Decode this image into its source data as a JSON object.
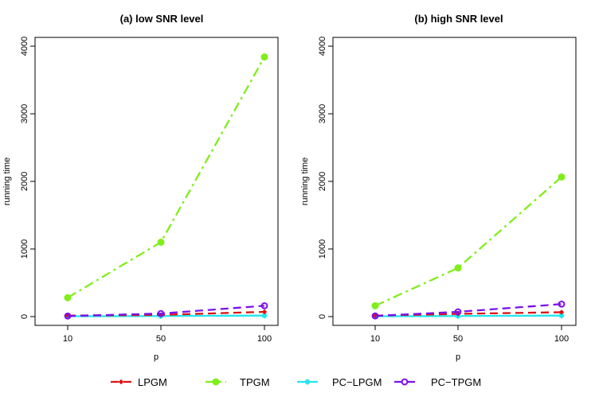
{
  "chart_data": [
    {
      "type": "line",
      "title": "(a) low SNR level",
      "xlabel": "p",
      "ylabel": "running time",
      "x": [
        10,
        50,
        100
      ],
      "x_tick_labels": [
        "10",
        "50",
        "100"
      ],
      "y_ticks": [
        0,
        1000,
        2000,
        3000,
        4000
      ],
      "y_tick_labels": [
        "0",
        "1000",
        "2000",
        "3000",
        "4000"
      ],
      "ylim": [
        -130,
        4130
      ],
      "grid": false,
      "series": [
        {
          "name": "LPGM",
          "values": [
            15,
            25,
            70
          ]
        },
        {
          "name": "TPGM",
          "values": [
            280,
            1100,
            3840
          ]
        },
        {
          "name": "PC−LPGM",
          "values": [
            5,
            8,
            15
          ]
        },
        {
          "name": "PC−TPGM",
          "values": [
            8,
            45,
            160
          ]
        }
      ]
    },
    {
      "type": "line",
      "title": "(b) high SNR level",
      "xlabel": "p",
      "ylabel": "running time",
      "x": [
        10,
        50,
        100
      ],
      "x_tick_labels": [
        "10",
        "50",
        "100"
      ],
      "y_ticks": [
        0,
        1000,
        2000,
        3000,
        4000
      ],
      "y_tick_labels": [
        "0",
        "1000",
        "2000",
        "3000",
        "4000"
      ],
      "ylim": [
        -130,
        4130
      ],
      "grid": false,
      "series": [
        {
          "name": "LPGM",
          "values": [
            15,
            40,
            65
          ]
        },
        {
          "name": "TPGM",
          "values": [
            160,
            720,
            2065
          ]
        },
        {
          "name": "PC−LPGM",
          "values": [
            5,
            8,
            15
          ]
        },
        {
          "name": "PC−TPGM",
          "values": [
            10,
            70,
            185
          ]
        }
      ]
    }
  ],
  "legend": {
    "position": "bottom",
    "items": [
      "LPGM",
      "TPGM",
      "PC−LPGM",
      "PC−TPGM"
    ]
  },
  "colors": {
    "LPGM": "#dd1111",
    "TPGM": "#80ee1a",
    "PC−LPGM": "#22e6ee",
    "PC−TPGM": "#7a10ee"
  },
  "styles": {
    "LPGM": {
      "dash": "10,6",
      "marker": "diamond"
    },
    "TPGM": {
      "dash": "12,5,3,5",
      "marker": "filled-circle"
    },
    "PC−LPGM": {
      "dash": "",
      "marker": "star"
    },
    "PC−TPGM": {
      "dash": "10,6",
      "marker": "open-circle"
    }
  }
}
